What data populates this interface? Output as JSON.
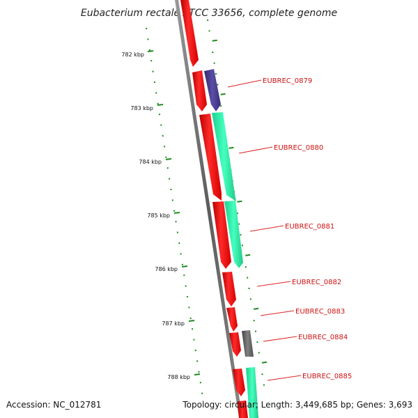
{
  "title": "Eubacterium rectale ATCC 33656, complete genome",
  "footer": {
    "accession": "Accession: NC_012781",
    "topology": "Topology: circular; Length: 3,449,685 bp; Genes: 3,693"
  },
  "colors": {
    "backbone": "#6f6f6f",
    "ruler": "#1f8a1f",
    "label_line": "#dd2222",
    "label_text": "#cc1111",
    "strand_fwd_red": "#ff1a1a",
    "strand_cyan": "#33f5b0",
    "strand_purple": "#4a3d8f",
    "strand_gray": "#666666"
  },
  "ruler": {
    "unit": "kbp",
    "ticks": [
      "782 kbp",
      "783 kbp",
      "784 kbp",
      "785 kbp",
      "786 kbp",
      "787 kbp",
      "788 kbp"
    ]
  },
  "gene_labels": [
    "EUBREC_0879",
    "EUBREC_0880",
    "EUBREC_0881",
    "EUBREC_0882",
    "EUBREC_0883",
    "EUBREC_0884",
    "EUBREC_0885"
  ]
}
